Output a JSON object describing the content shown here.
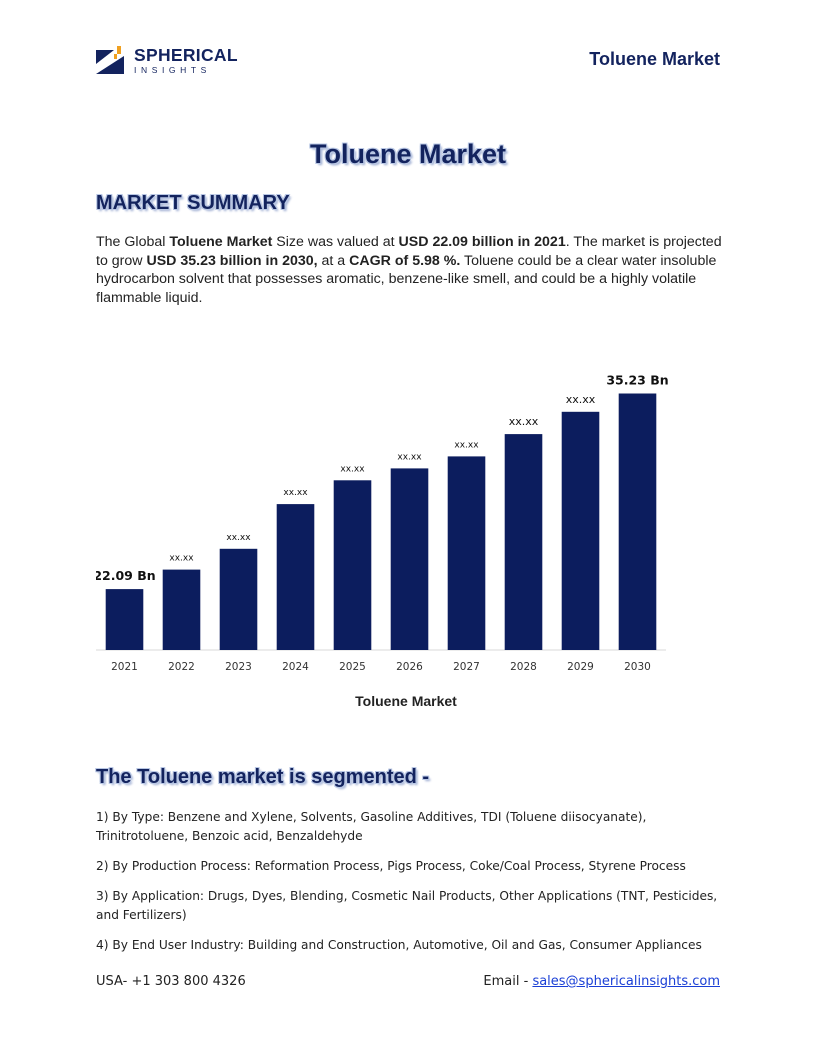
{
  "header": {
    "logo_name": "SPHERICAL",
    "logo_sub": "INSIGHTS",
    "title": "Toluene Market"
  },
  "page_title": "Toluene Market",
  "summary": {
    "heading": "MARKET SUMMARY",
    "t1": "The Global ",
    "b1": "Toluene Market",
    "t2": " Size was valued at ",
    "b2": "USD 22.09 billion in 2021",
    "t3": ". The market is projected to grow ",
    "b3": "USD 35.23 billion in 2030,",
    "t4": " at a ",
    "b4": "CAGR of 5.98 %.",
    "t5": " Toluene could be a clear water insoluble hydrocarbon solvent that possesses aromatic, benzene-like smell, and could be a highly volatile flammable liquid."
  },
  "chart_data": {
    "type": "bar",
    "categories": [
      "2021",
      "2022",
      "2023",
      "2024",
      "2025",
      "2026",
      "2027",
      "2028",
      "2029",
      "2030"
    ],
    "values": [
      22.09,
      23.4,
      24.8,
      27.8,
      29.4,
      30.2,
      31.0,
      32.5,
      34.0,
      35.23
    ],
    "data_labels": [
      "22.09 Bn",
      "xx.xx",
      "xx.xx",
      "xx.xx",
      "xx.xx",
      "xx.xx",
      "xx.xx",
      "xx.xx",
      "xx.xx",
      "35.23 Bn"
    ],
    "xlabel": "Toluene Market",
    "ylabel": "",
    "ylim": [
      18,
      36
    ],
    "grid": false,
    "bar_color": "#0c1d5e"
  },
  "segments": {
    "heading": "The Toluene market is segmented -",
    "items": [
      "1) By Type: Benzene and Xylene, Solvents, Gasoline Additives, TDI (Toluene diisocyanate), Trinitrotoluene, Benzoic acid, Benzaldehyde",
      "2) By Production Process: Reformation Process, Pigs Process, Coke/Coal Process, Styrene Process",
      "3) By Application: Drugs, Dyes, Blending, Cosmetic Nail Products, Other Applications (TNT, Pesticides, and Fertilizers)",
      "4) By End User Industry: Building and Construction, Automotive, Oil and Gas, Consumer Appliances"
    ]
  },
  "footer": {
    "phone": "USA- +1 303 800 4326",
    "email_label": "Email - ",
    "email": "sales@sphericalinsights.com"
  }
}
